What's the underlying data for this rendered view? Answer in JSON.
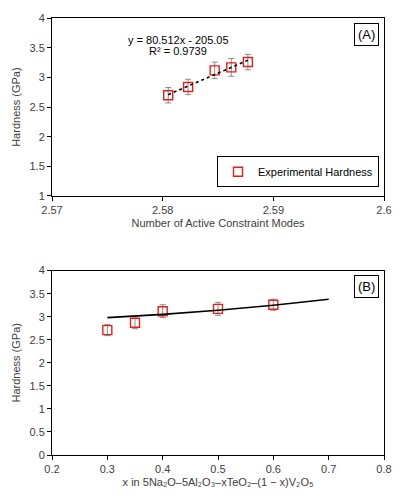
{
  "chart_data": [
    {
      "type": "scatter",
      "annotations": [
        "(A)",
        "y = 80.512x - 205.05",
        "R² = 0.9739"
      ],
      "x_label": "Number of Active Constraint Modes",
      "y_label": "Hardness (GPa)",
      "xlim": [
        2.57,
        2.6
      ],
      "xticks": [
        2.57,
        2.58,
        2.59,
        2.6
      ],
      "ylim": [
        1,
        4
      ],
      "yticks": [
        1,
        1.5,
        2,
        2.5,
        3,
        3.5,
        4
      ],
      "grid": false,
      "legend": "bottom right",
      "series": [
        {
          "name": "Experimental Hardness",
          "type": "scatter",
          "marker": "square-open",
          "color": "#e3211c",
          "x": [
            2.5805,
            2.5823,
            2.5847,
            2.5862,
            2.5877
          ],
          "values": [
            2.7,
            2.84,
            3.12,
            3.17,
            3.26
          ],
          "error": [
            0.13,
            0.13,
            0.14,
            0.15,
            0.13
          ]
        },
        {
          "type": "line",
          "line_style": "dot",
          "color": "#000000",
          "x": [
            2.5805,
            2.5877
          ],
          "values": [
            2.71,
            3.29
          ]
        }
      ]
    },
    {
      "type": "scatter",
      "annotations": [
        "(B)"
      ],
      "x_label": "x in 5Na₂O–5Al₂O₃–xTeO₂–(1 − x)V₂O₅",
      "y_label": "Hardness (GPa)",
      "xlim": [
        0.2,
        0.8
      ],
      "xticks": [
        0.2,
        0.3,
        0.4,
        0.5,
        0.6,
        0.7,
        0.8
      ],
      "ylim": [
        0,
        4
      ],
      "yticks": [
        0,
        0.5,
        1,
        1.5,
        2,
        2.5,
        3,
        3.5,
        4
      ],
      "grid": false,
      "series": [
        {
          "type": "scatter",
          "marker": "square-open",
          "color": "#e3211c",
          "x": [
            0.3,
            0.35,
            0.4,
            0.5,
            0.6
          ],
          "values": [
            2.71,
            2.87,
            3.12,
            3.17,
            3.26
          ],
          "error": [
            0.12,
            0.13,
            0.14,
            0.14,
            0.12
          ]
        },
        {
          "type": "line",
          "line_style": "solid",
          "color": "#000000",
          "x": [
            0.3,
            0.4,
            0.5,
            0.6,
            0.7
          ],
          "values": [
            2.98,
            3.05,
            3.14,
            3.25,
            3.38
          ]
        }
      ]
    }
  ]
}
